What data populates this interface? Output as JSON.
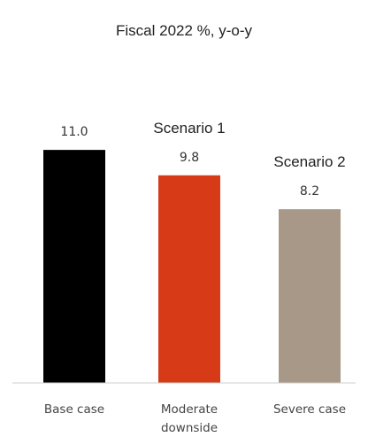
{
  "chart_data": {
    "type": "bar",
    "title": "Fiscal 2022 %, y-o-y",
    "categories": [
      [
        "Base case"
      ],
      [
        "Moderate",
        "downside"
      ],
      [
        "Severe case"
      ]
    ],
    "values": [
      11.0,
      9.8,
      8.2
    ],
    "value_labels": [
      "11.0",
      "9.8",
      "8.2"
    ],
    "colors": [
      "#000000",
      "#d63a17",
      "#a89887"
    ],
    "annotations": [
      {
        "text": "Scenario 1",
        "category_index": 1
      },
      {
        "text": "Scenario 2",
        "category_index": 2
      }
    ],
    "ylim": [
      0,
      11.8
    ],
    "grid": false,
    "legend": "none"
  }
}
